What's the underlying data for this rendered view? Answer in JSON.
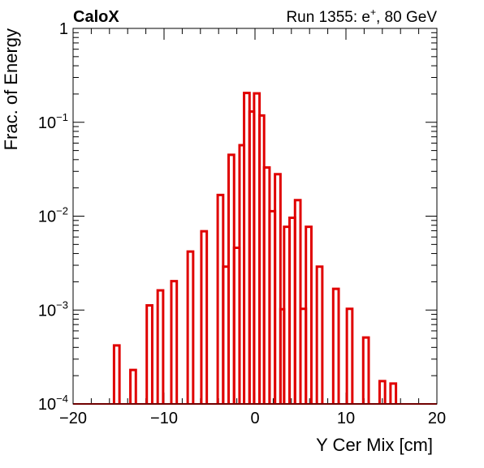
{
  "header": {
    "left_label": "CaloX",
    "right_label_prefix": "Run 1355: e",
    "right_label_sup": "+",
    "right_label_suffix": ", 80 GeV"
  },
  "chart_data": {
    "type": "histogram",
    "xlabel": "Y Cer Mix [cm]",
    "ylabel": "Frac. of Energy",
    "xlim": [
      -20,
      20
    ],
    "ylim": [
      0.0001,
      1
    ],
    "yscale": "log",
    "bin_width": 0.6,
    "x_ticks": [
      "−20",
      "−10",
      "0",
      "10",
      "20"
    ],
    "x_tick_values": [
      -20,
      -10,
      0,
      10,
      20
    ],
    "y_tick_labels": [
      {
        "value": 1,
        "base": "1",
        "exp": ""
      },
      {
        "value": 0.1,
        "base": "10",
        "exp": "−1"
      },
      {
        "value": 0.01,
        "base": "10",
        "exp": "−2"
      },
      {
        "value": 0.001,
        "base": "10",
        "exp": "−3"
      },
      {
        "value": 0.0001,
        "base": "10",
        "exp": "−4"
      }
    ],
    "line_color": "#e00000",
    "bins": [
      {
        "x0": -15.5,
        "x1": -14.9,
        "y": 0.00042
      },
      {
        "x0": -13.7,
        "x1": -13.1,
        "y": 0.00023
      },
      {
        "x0": -11.9,
        "x1": -11.3,
        "y": 0.00112
      },
      {
        "x0": -10.7,
        "x1": -10.1,
        "y": 0.00162
      },
      {
        "x0": -9.2,
        "x1": -8.6,
        "y": 0.00203
      },
      {
        "x0": -7.4,
        "x1": -6.8,
        "y": 0.0042
      },
      {
        "x0": -5.9,
        "x1": -5.3,
        "y": 0.0069
      },
      {
        "x0": -4.1,
        "x1": -3.5,
        "y": 0.0168
      },
      {
        "x0": -3.5,
        "x1": -2.9,
        "y": 0.0029
      },
      {
        "x0": -2.9,
        "x1": -2.3,
        "y": 0.045
      },
      {
        "x0": -2.3,
        "x1": -1.7,
        "y": 0.0046
      },
      {
        "x0": -1.7,
        "x1": -1.2,
        "y": 0.057
      },
      {
        "x0": -1.2,
        "x1": -0.6,
        "y": 0.205
      },
      {
        "x0": -0.6,
        "x1": -0.1,
        "y": 0.13
      },
      {
        "x0": -0.1,
        "x1": 0.5,
        "y": 0.203
      },
      {
        "x0": 0.5,
        "x1": 1.0,
        "y": 0.118
      },
      {
        "x0": 1.0,
        "x1": 1.6,
        "y": 0.033
      },
      {
        "x0": 1.6,
        "x1": 2.2,
        "y": 0.0113
      },
      {
        "x0": 2.2,
        "x1": 2.8,
        "y": 0.028
      },
      {
        "x0": 2.8,
        "x1": 3.2,
        "y": 0.00102
      },
      {
        "x0": 3.2,
        "x1": 3.8,
        "y": 0.0077
      },
      {
        "x0": 3.8,
        "x1": 4.4,
        "y": 0.0096
      },
      {
        "x0": 4.4,
        "x1": 5.0,
        "y": 0.0148
      },
      {
        "x0": 5.0,
        "x1": 5.6,
        "y": 0.00103
      },
      {
        "x0": 5.6,
        "x1": 6.2,
        "y": 0.0077
      },
      {
        "x0": 6.8,
        "x1": 7.4,
        "y": 0.0029
      },
      {
        "x0": 8.6,
        "x1": 9.2,
        "y": 0.00168
      },
      {
        "x0": 10.1,
        "x1": 10.7,
        "y": 0.00103
      },
      {
        "x0": 11.9,
        "x1": 12.5,
        "y": 0.00051
      },
      {
        "x0": 13.7,
        "x1": 14.3,
        "y": 0.000175
      },
      {
        "x0": 14.9,
        "x1": 15.5,
        "y": 0.000165
      }
    ]
  }
}
